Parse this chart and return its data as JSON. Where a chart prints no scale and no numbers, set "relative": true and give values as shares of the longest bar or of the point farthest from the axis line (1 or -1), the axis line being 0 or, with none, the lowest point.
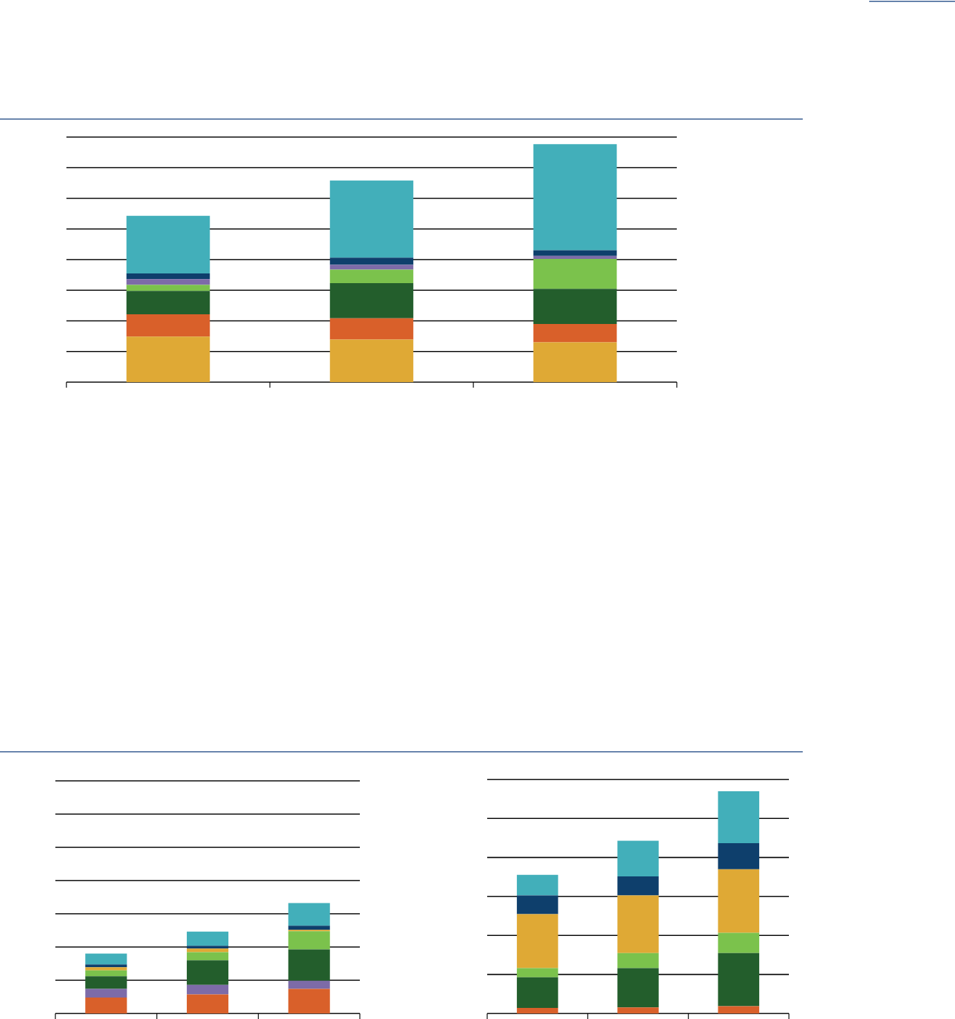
{
  "chart_data": [
    {
      "type": "bar",
      "stacked": true,
      "relative": true,
      "grid": "y",
      "categories": [
        null,
        null,
        null
      ],
      "series": [
        {
          "color": "#dfa935",
          "values": [
            0.191,
            0.179,
            0.167
          ]
        },
        {
          "color": "#d9602a",
          "values": [
            0.094,
            0.089,
            0.077
          ]
        },
        {
          "color": "#235e2c",
          "values": [
            0.098,
            0.148,
            0.148
          ]
        },
        {
          "color": "#7bc24c",
          "values": [
            0.026,
            0.057,
            0.126
          ]
        },
        {
          "color": "#7d6ba8",
          "values": [
            0.024,
            0.02,
            0.012
          ]
        },
        {
          "color": "#0e3f6c",
          "values": [
            0.024,
            0.03,
            0.024
          ]
        },
        {
          "color": "#42afba",
          "values": [
            0.242,
            0.324,
            0.446
          ]
        }
      ]
    },
    {
      "type": "bar",
      "stacked": true,
      "relative": true,
      "grid": "y",
      "categories": [
        null,
        null,
        null
      ],
      "series": [
        {
          "color": "#d9602a",
          "values": [
            0.144,
            0.173,
            0.222
          ]
        },
        {
          "color": "#7d6ba8",
          "values": [
            0.078,
            0.086,
            0.074
          ]
        },
        {
          "color": "#235e2c",
          "values": [
            0.115,
            0.222,
            0.284
          ]
        },
        {
          "color": "#7bc24c",
          "values": [
            0.053,
            0.074,
            0.165
          ]
        },
        {
          "color": "#dfa935",
          "values": [
            0.029,
            0.033,
            0.012
          ]
        },
        {
          "color": "#0e3f6c",
          "values": [
            0.025,
            0.025,
            0.037
          ]
        },
        {
          "color": "#42afba",
          "values": [
            0.099,
            0.128,
            0.206
          ]
        }
      ]
    },
    {
      "type": "bar",
      "stacked": true,
      "relative": true,
      "grid": "y",
      "categories": [
        null,
        null,
        null
      ],
      "series": [
        {
          "color": "#d9602a",
          "values": [
            0.025,
            0.027,
            0.033
          ]
        },
        {
          "color": "#235e2c",
          "values": [
            0.138,
            0.177,
            0.239
          ]
        },
        {
          "color": "#7bc24c",
          "values": [
            0.041,
            0.068,
            0.091
          ]
        },
        {
          "color": "#dfa935",
          "values": [
            0.243,
            0.259,
            0.286
          ]
        },
        {
          "color": "#0e3f6c",
          "values": [
            0.084,
            0.086,
            0.117
          ]
        },
        {
          "color": "#42afba",
          "values": [
            0.093,
            0.16,
            0.234
          ]
        }
      ]
    }
  ]
}
